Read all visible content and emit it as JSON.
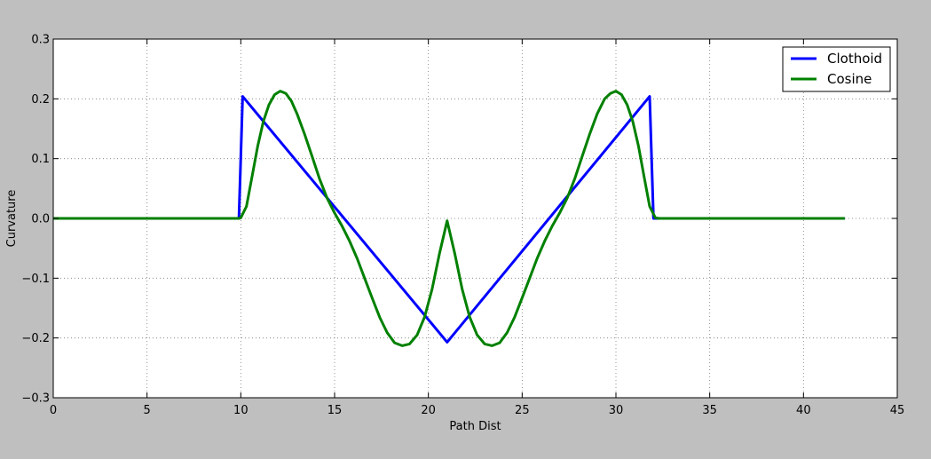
{
  "chart_data": {
    "type": "line",
    "title": "",
    "xlabel": "Path Dist",
    "ylabel": "Curvature",
    "xlim": [
      0,
      45
    ],
    "ylim": [
      -0.3,
      0.3
    ],
    "xticks": [
      0,
      5,
      10,
      15,
      20,
      25,
      30,
      35,
      40,
      45
    ],
    "yticks": [
      -0.3,
      -0.2,
      -0.1,
      0.0,
      0.1,
      0.2,
      0.3
    ],
    "xtick_labels": [
      "0",
      "5",
      "10",
      "15",
      "20",
      "25",
      "30",
      "35",
      "40",
      "45"
    ],
    "ytick_labels": [
      "−0.3",
      "−0.2",
      "−0.1",
      "0.0",
      "0.1",
      "0.2",
      "0.3"
    ],
    "grid": true,
    "legend_position": "top-right",
    "series": [
      {
        "name": "Clothoid",
        "color": "#0000ff",
        "x": [
          0,
          9.9,
          10.1,
          21.0,
          31.8,
          32.0,
          42.2
        ],
        "y": [
          0,
          0,
          0.204,
          -0.207,
          0.204,
          0,
          0
        ]
      },
      {
        "name": "Cosine",
        "color": "#008000",
        "x": [
          0,
          9.9,
          10.0,
          10.3,
          10.6,
          10.9,
          11.2,
          11.5,
          11.8,
          12.1,
          12.4,
          12.7,
          13.0,
          13.4,
          13.8,
          14.2,
          14.6,
          15.0,
          15.4,
          15.8,
          16.2,
          16.6,
          17.0,
          17.4,
          17.8,
          18.2,
          18.6,
          19.0,
          19.4,
          19.8,
          20.2,
          20.6,
          21.0,
          21.4,
          21.8,
          22.2,
          22.6,
          23.0,
          23.4,
          23.8,
          24.2,
          24.6,
          25.0,
          25.4,
          25.8,
          26.2,
          26.6,
          27.0,
          27.4,
          27.8,
          28.2,
          28.6,
          29.0,
          29.4,
          29.7,
          30.0,
          30.3,
          30.6,
          30.9,
          31.2,
          31.5,
          31.8,
          32.1,
          32.3,
          34.0,
          38.0,
          42.2
        ],
        "y": [
          0,
          0,
          0.001,
          0.02,
          0.07,
          0.121,
          0.162,
          0.19,
          0.207,
          0.213,
          0.209,
          0.196,
          0.175,
          0.141,
          0.104,
          0.066,
          0.034,
          0.009,
          -0.013,
          -0.038,
          -0.067,
          -0.1,
          -0.133,
          -0.165,
          -0.191,
          -0.208,
          -0.213,
          -0.21,
          -0.195,
          -0.165,
          -0.118,
          -0.058,
          -0.004,
          -0.058,
          -0.118,
          -0.165,
          -0.195,
          -0.21,
          -0.213,
          -0.208,
          -0.191,
          -0.165,
          -0.133,
          -0.1,
          -0.067,
          -0.038,
          -0.013,
          0.009,
          0.034,
          0.066,
          0.104,
          0.141,
          0.175,
          0.2,
          0.209,
          0.213,
          0.207,
          0.19,
          0.162,
          0.121,
          0.07,
          0.02,
          0.001,
          0,
          0,
          0,
          0
        ]
      }
    ]
  }
}
